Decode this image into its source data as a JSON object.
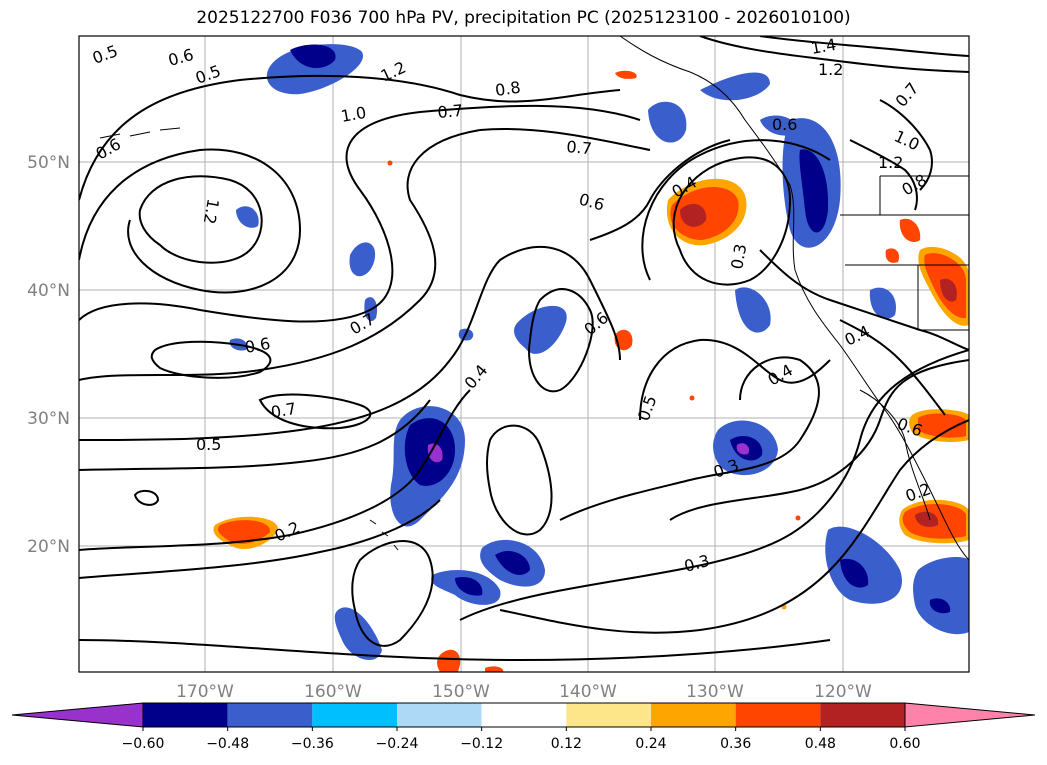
{
  "title": "2025122700 F036 700 hPa PV, precipitation PC (2025123100 - 2026010100)",
  "axes": {
    "lon_labels": [
      "170°W",
      "160°W",
      "150°W",
      "140°W",
      "130°W",
      "120°W"
    ],
    "lat_labels": [
      "50°N",
      "40°N",
      "30°N",
      "20°N"
    ]
  },
  "contour_labels": [
    "0.5",
    "0.6",
    "0.5",
    "1.2",
    "1.0",
    "0.7",
    "0.8",
    "1.4",
    "1.2",
    "0.7",
    "0.6",
    "1.0",
    "1.2",
    "0.8",
    "0.6",
    "1.2",
    "0.7",
    "0.6",
    "0.4",
    "0.3",
    "0.6",
    "0.7",
    "0.6",
    "0.7",
    "0.4",
    "0.5",
    "0.4",
    "0.4",
    "0.5",
    "0.3",
    "0.6",
    "0.2",
    "0.2",
    "0.3"
  ],
  "colorbar": {
    "ticks": [
      "−0.60",
      "−0.48",
      "−0.36",
      "−0.24",
      "−0.12",
      "0.12",
      "0.24",
      "0.36",
      "0.48",
      "0.60"
    ],
    "colors": [
      "#9932cc",
      "#00008b",
      "#3a5fcd",
      "#00bfff",
      "#add8f6",
      "#ffffff",
      "#fde68a",
      "#ffa500",
      "#ff4500",
      "#b22222",
      "#ff82ab"
    ]
  }
}
